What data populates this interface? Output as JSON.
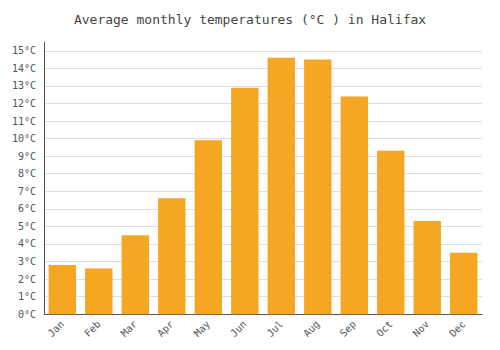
{
  "chart_data": {
    "type": "bar",
    "title": "Average monthly temperatures (°C ) in Halifax",
    "categories": [
      "Jan",
      "Feb",
      "Mar",
      "Apr",
      "May",
      "Jun",
      "Jul",
      "Aug",
      "Sep",
      "Oct",
      "Nov",
      "Dec"
    ],
    "values": [
      2.8,
      2.6,
      4.5,
      6.6,
      9.9,
      12.9,
      14.6,
      14.5,
      12.4,
      9.3,
      5.3,
      3.5
    ],
    "color": "#F5A623",
    "ylim": [
      0,
      15.5
    ],
    "yticks": [
      {
        "value": 0,
        "label": "0°C"
      },
      {
        "value": 1,
        "label": "1°C"
      },
      {
        "value": 2,
        "label": "2°C"
      },
      {
        "value": 3,
        "label": "3°C"
      },
      {
        "value": 4,
        "label": "4°C"
      },
      {
        "value": 5,
        "label": "5°C"
      },
      {
        "value": 6,
        "label": "6°C"
      },
      {
        "value": 7,
        "label": "7°C"
      },
      {
        "value": 8,
        "label": "8°C"
      },
      {
        "value": 9,
        "label": "9°C"
      },
      {
        "value": 10,
        "label": "10°C"
      },
      {
        "value": 11,
        "label": "11°C"
      },
      {
        "value": 12,
        "label": "12°C"
      },
      {
        "value": 13,
        "label": "13°C"
      },
      {
        "value": 14,
        "label": "14°C"
      },
      {
        "value": 15,
        "label": "15°C"
      }
    ],
    "grid": true
  }
}
